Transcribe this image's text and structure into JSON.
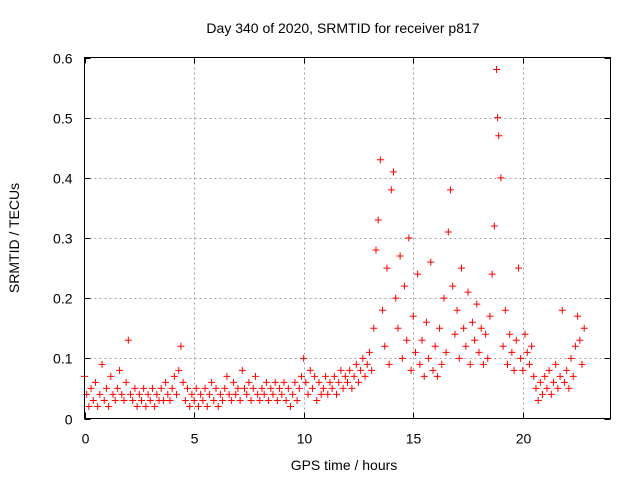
{
  "chart_data": {
    "type": "scatter",
    "title": "Day 340 of 2020, SRMTID for receiver p817",
    "xlabel": "GPS time / hours",
    "ylabel": "SRMTID / TECUs",
    "xlim": [
      0,
      24
    ],
    "ylim": [
      0,
      0.6
    ],
    "xticks": [
      0,
      5,
      10,
      15,
      20
    ],
    "xtick_labels": [
      "0",
      "5",
      "10",
      "15",
      "20"
    ],
    "yticks": [
      0,
      0.1,
      0.2,
      0.3,
      0.4,
      0.5,
      0.6
    ],
    "ytick_labels": [
      "0",
      "0.1",
      "0.2",
      "0.3",
      "0.4",
      "0.5",
      "0.6"
    ],
    "grid": true,
    "marker": "+",
    "color": "#ff0000",
    "series": [
      {
        "name": "SRMTID",
        "points": [
          [
            0.0,
            0.07
          ],
          [
            0.1,
            0.04
          ],
          [
            0.2,
            0.02
          ],
          [
            0.3,
            0.05
          ],
          [
            0.4,
            0.03
          ],
          [
            0.5,
            0.06
          ],
          [
            0.6,
            0.02
          ],
          [
            0.7,
            0.04
          ],
          [
            0.8,
            0.09
          ],
          [
            0.9,
            0.03
          ],
          [
            1.0,
            0.05
          ],
          [
            1.1,
            0.02
          ],
          [
            1.2,
            0.07
          ],
          [
            1.3,
            0.04
          ],
          [
            1.4,
            0.03
          ],
          [
            1.5,
            0.05
          ],
          [
            1.6,
            0.08
          ],
          [
            1.7,
            0.04
          ],
          [
            1.8,
            0.03
          ],
          [
            1.9,
            0.06
          ],
          [
            2.0,
            0.13
          ],
          [
            2.1,
            0.04
          ],
          [
            2.2,
            0.03
          ],
          [
            2.3,
            0.05
          ],
          [
            2.4,
            0.02
          ],
          [
            2.5,
            0.04
          ],
          [
            2.6,
            0.03
          ],
          [
            2.7,
            0.05
          ],
          [
            2.8,
            0.02
          ],
          [
            2.9,
            0.04
          ],
          [
            3.0,
            0.03
          ],
          [
            3.1,
            0.05
          ],
          [
            3.2,
            0.02
          ],
          [
            3.3,
            0.04
          ],
          [
            3.4,
            0.03
          ],
          [
            3.5,
            0.05
          ],
          [
            3.6,
            0.03
          ],
          [
            3.7,
            0.06
          ],
          [
            3.8,
            0.04
          ],
          [
            3.9,
            0.03
          ],
          [
            4.0,
            0.05
          ],
          [
            4.1,
            0.07
          ],
          [
            4.2,
            0.04
          ],
          [
            4.3,
            0.08
          ],
          [
            4.4,
            0.12
          ],
          [
            4.5,
            0.06
          ],
          [
            4.6,
            0.03
          ],
          [
            4.7,
            0.05
          ],
          [
            4.8,
            0.02
          ],
          [
            4.9,
            0.04
          ],
          [
            5.0,
            0.03
          ],
          [
            5.1,
            0.05
          ],
          [
            5.2,
            0.02
          ],
          [
            5.3,
            0.04
          ],
          [
            5.4,
            0.03
          ],
          [
            5.5,
            0.05
          ],
          [
            5.6,
            0.02
          ],
          [
            5.7,
            0.04
          ],
          [
            5.8,
            0.06
          ],
          [
            5.9,
            0.03
          ],
          [
            6.0,
            0.05
          ],
          [
            6.1,
            0.02
          ],
          [
            6.2,
            0.04
          ],
          [
            6.3,
            0.03
          ],
          [
            6.4,
            0.05
          ],
          [
            6.5,
            0.07
          ],
          [
            6.6,
            0.04
          ],
          [
            6.7,
            0.03
          ],
          [
            6.8,
            0.06
          ],
          [
            6.9,
            0.04
          ],
          [
            7.0,
            0.05
          ],
          [
            7.1,
            0.03
          ],
          [
            7.2,
            0.08
          ],
          [
            7.3,
            0.05
          ],
          [
            7.4,
            0.04
          ],
          [
            7.5,
            0.06
          ],
          [
            7.6,
            0.03
          ],
          [
            7.7,
            0.05
          ],
          [
            7.8,
            0.07
          ],
          [
            7.9,
            0.04
          ],
          [
            8.0,
            0.03
          ],
          [
            8.1,
            0.05
          ],
          [
            8.2,
            0.04
          ],
          [
            8.3,
            0.06
          ],
          [
            8.4,
            0.03
          ],
          [
            8.5,
            0.05
          ],
          [
            8.6,
            0.04
          ],
          [
            8.7,
            0.06
          ],
          [
            8.8,
            0.03
          ],
          [
            8.9,
            0.05
          ],
          [
            9.0,
            0.04
          ],
          [
            9.1,
            0.06
          ],
          [
            9.2,
            0.03
          ],
          [
            9.3,
            0.05
          ],
          [
            9.4,
            0.02
          ],
          [
            9.5,
            0.04
          ],
          [
            9.6,
            0.06
          ],
          [
            9.7,
            0.03
          ],
          [
            9.8,
            0.05
          ],
          [
            9.9,
            0.07
          ],
          [
            10.0,
            0.1
          ],
          [
            10.1,
            0.06
          ],
          [
            10.2,
            0.04
          ],
          [
            10.3,
            0.08
          ],
          [
            10.4,
            0.05
          ],
          [
            10.5,
            0.07
          ],
          [
            10.6,
            0.03
          ],
          [
            10.7,
            0.06
          ],
          [
            10.8,
            0.04
          ],
          [
            10.9,
            0.05
          ],
          [
            11.0,
            0.07
          ],
          [
            11.1,
            0.04
          ],
          [
            11.2,
            0.06
          ],
          [
            11.3,
            0.05
          ],
          [
            11.4,
            0.07
          ],
          [
            11.5,
            0.04
          ],
          [
            11.6,
            0.06
          ],
          [
            11.7,
            0.08
          ],
          [
            11.8,
            0.05
          ],
          [
            11.9,
            0.07
          ],
          [
            12.0,
            0.06
          ],
          [
            12.1,
            0.08
          ],
          [
            12.2,
            0.05
          ],
          [
            12.3,
            0.07
          ],
          [
            12.4,
            0.09
          ],
          [
            12.5,
            0.06
          ],
          [
            12.6,
            0.08
          ],
          [
            12.7,
            0.1
          ],
          [
            12.8,
            0.07
          ],
          [
            12.9,
            0.09
          ],
          [
            13.0,
            0.11
          ],
          [
            13.1,
            0.08
          ],
          [
            13.2,
            0.15
          ],
          [
            13.3,
            0.28
          ],
          [
            13.4,
            0.33
          ],
          [
            13.5,
            0.43
          ],
          [
            13.6,
            0.18
          ],
          [
            13.7,
            0.12
          ],
          [
            13.8,
            0.25
          ],
          [
            13.9,
            0.09
          ],
          [
            14.0,
            0.38
          ],
          [
            14.1,
            0.41
          ],
          [
            14.2,
            0.2
          ],
          [
            14.3,
            0.15
          ],
          [
            14.4,
            0.27
          ],
          [
            14.5,
            0.1
          ],
          [
            14.6,
            0.22
          ],
          [
            14.7,
            0.13
          ],
          [
            14.8,
            0.3
          ],
          [
            14.9,
            0.08
          ],
          [
            15.0,
            0.17
          ],
          [
            15.1,
            0.11
          ],
          [
            15.2,
            0.24
          ],
          [
            15.3,
            0.09
          ],
          [
            15.4,
            0.13
          ],
          [
            15.5,
            0.07
          ],
          [
            15.6,
            0.16
          ],
          [
            15.7,
            0.1
          ],
          [
            15.8,
            0.26
          ],
          [
            15.9,
            0.08
          ],
          [
            16.0,
            0.12
          ],
          [
            16.1,
            0.07
          ],
          [
            16.2,
            0.15
          ],
          [
            16.3,
            0.09
          ],
          [
            16.4,
            0.2
          ],
          [
            16.5,
            0.11
          ],
          [
            16.6,
            0.31
          ],
          [
            16.7,
            0.38
          ],
          [
            16.8,
            0.22
          ],
          [
            16.9,
            0.14
          ],
          [
            17.0,
            0.18
          ],
          [
            17.1,
            0.1
          ],
          [
            17.2,
            0.25
          ],
          [
            17.3,
            0.15
          ],
          [
            17.4,
            0.12
          ],
          [
            17.5,
            0.21
          ],
          [
            17.6,
            0.09
          ],
          [
            17.7,
            0.16
          ],
          [
            17.8,
            0.13
          ],
          [
            17.9,
            0.19
          ],
          [
            18.0,
            0.11
          ],
          [
            18.1,
            0.15
          ],
          [
            18.2,
            0.09
          ],
          [
            18.3,
            0.14
          ],
          [
            18.4,
            0.1
          ],
          [
            18.5,
            0.17
          ],
          [
            18.6,
            0.24
          ],
          [
            18.7,
            0.32
          ],
          [
            18.8,
            0.58
          ],
          [
            18.85,
            0.5
          ],
          [
            18.9,
            0.47
          ],
          [
            19.0,
            0.4
          ],
          [
            19.1,
            0.12
          ],
          [
            19.2,
            0.18
          ],
          [
            19.3,
            0.09
          ],
          [
            19.4,
            0.14
          ],
          [
            19.5,
            0.11
          ],
          [
            19.6,
            0.08
          ],
          [
            19.7,
            0.13
          ],
          [
            19.8,
            0.25
          ],
          [
            19.9,
            0.1
          ],
          [
            20.0,
            0.08
          ],
          [
            20.1,
            0.14
          ],
          [
            20.2,
            0.11
          ],
          [
            20.3,
            0.09
          ],
          [
            20.4,
            0.12
          ],
          [
            20.5,
            0.07
          ],
          [
            20.6,
            0.05
          ],
          [
            20.7,
            0.03
          ],
          [
            20.8,
            0.06
          ],
          [
            20.9,
            0.04
          ],
          [
            21.0,
            0.07
          ],
          [
            21.1,
            0.05
          ],
          [
            21.2,
            0.08
          ],
          [
            21.3,
            0.04
          ],
          [
            21.4,
            0.06
          ],
          [
            21.5,
            0.09
          ],
          [
            21.6,
            0.05
          ],
          [
            21.7,
            0.07
          ],
          [
            21.8,
            0.18
          ],
          [
            21.9,
            0.06
          ],
          [
            22.0,
            0.08
          ],
          [
            22.1,
            0.05
          ],
          [
            22.2,
            0.1
          ],
          [
            22.3,
            0.07
          ],
          [
            22.4,
            0.12
          ],
          [
            22.5,
            0.17
          ],
          [
            22.6,
            0.13
          ],
          [
            22.7,
            0.09
          ],
          [
            22.8,
            0.15
          ]
        ]
      }
    ]
  }
}
